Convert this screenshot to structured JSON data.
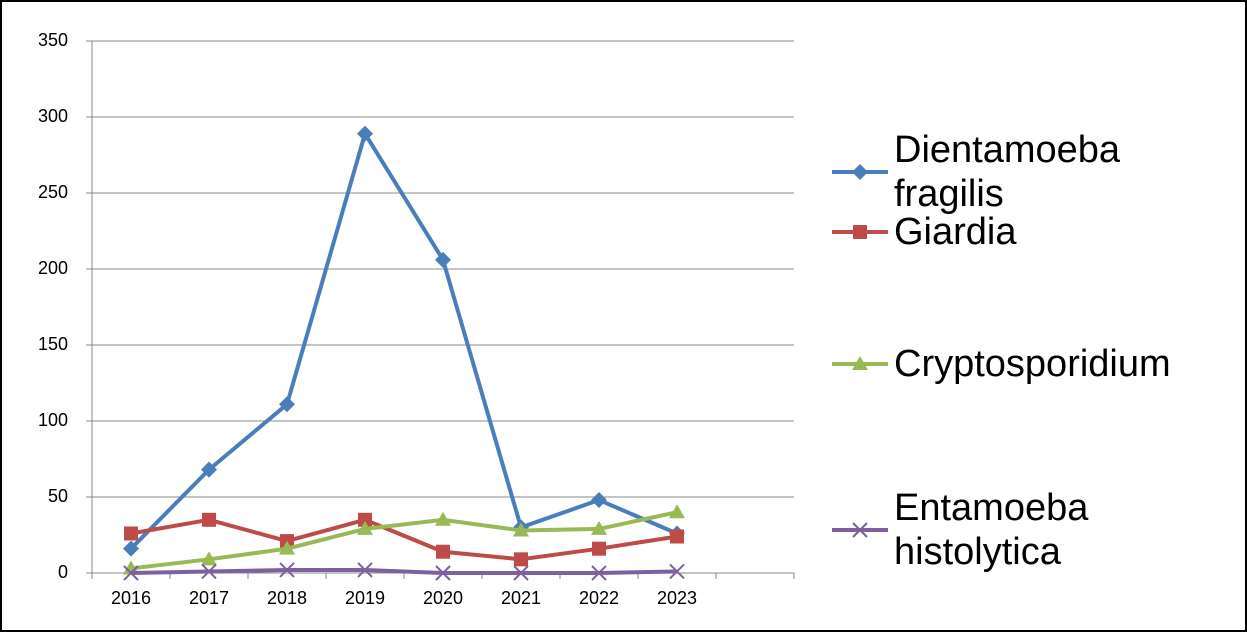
{
  "chart_data": {
    "type": "line",
    "categories": [
      "2016",
      "2017",
      "2018",
      "2019",
      "2020",
      "2021",
      "2022",
      "2023",
      null
    ],
    "series": [
      {
        "name": "Dientamoeba fragilis",
        "color": "#4a7ebb",
        "marker": "diamond",
        "values": [
          16,
          68,
          111,
          289,
          206,
          30,
          48,
          26,
          null
        ]
      },
      {
        "name": "Giardia",
        "color": "#be4b48",
        "marker": "square",
        "values": [
          26,
          35,
          21,
          35,
          14,
          9,
          16,
          24,
          null
        ]
      },
      {
        "name": "Cryptosporidium",
        "color": "#98b954",
        "marker": "triangle",
        "values": [
          3,
          9,
          16,
          29,
          35,
          28,
          29,
          40,
          null
        ]
      },
      {
        "name": "Entamoeba histolytica",
        "color": "#7d60a0",
        "marker": "x",
        "values": [
          0,
          1,
          2,
          2,
          0,
          0,
          0,
          1,
          null
        ]
      }
    ],
    "ylim": [
      0,
      350
    ],
    "yticks": [
      0,
      50,
      100,
      150,
      200,
      250,
      300,
      350
    ],
    "grid": true,
    "legend": "right"
  }
}
